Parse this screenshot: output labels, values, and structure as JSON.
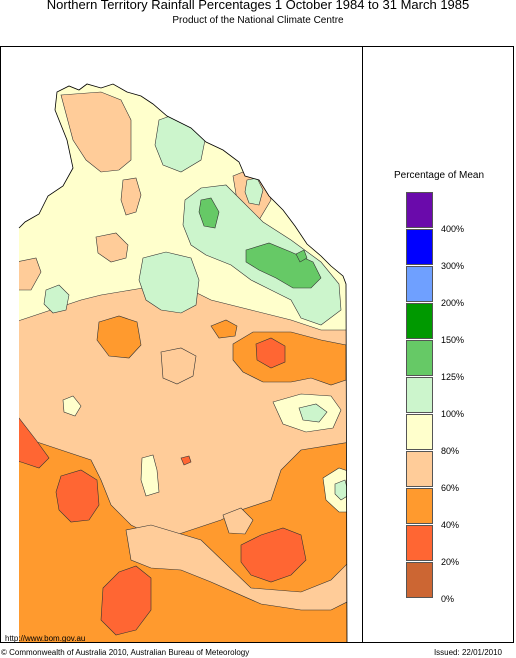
{
  "header": {
    "title": "Northern Territory Rainfall Percentages 1 October 1984 to 31 March 1985",
    "subtitle": "Product of the National Climate Centre"
  },
  "legend": {
    "title": "Percentage of Mean",
    "bins": [
      {
        "color": "#6a0aab",
        "label": "400%"
      },
      {
        "color": "#0000ff",
        "label": "300%"
      },
      {
        "color": "#6fa0ff",
        "label": "200%"
      },
      {
        "color": "#009900",
        "label": "150%"
      },
      {
        "color": "#66c966",
        "label": "125%"
      },
      {
        "color": "#ccf5cc",
        "label": "100%"
      },
      {
        "color": "#ffffcc",
        "label": "80%"
      },
      {
        "color": "#ffcc99",
        "label": "60%"
      },
      {
        "color": "#ff9a2e",
        "label": "40%"
      },
      {
        "color": "#ff6633",
        "label": "20%"
      },
      {
        "color": "#cc6633",
        "label": "0%"
      }
    ]
  },
  "footer": {
    "url": "http://www.bom.gov.au",
    "copyright": "© Commonwealth of Australia 2010, Australian Bureau of Meteorology",
    "issued": "Issued: 22/01/2010"
  }
}
